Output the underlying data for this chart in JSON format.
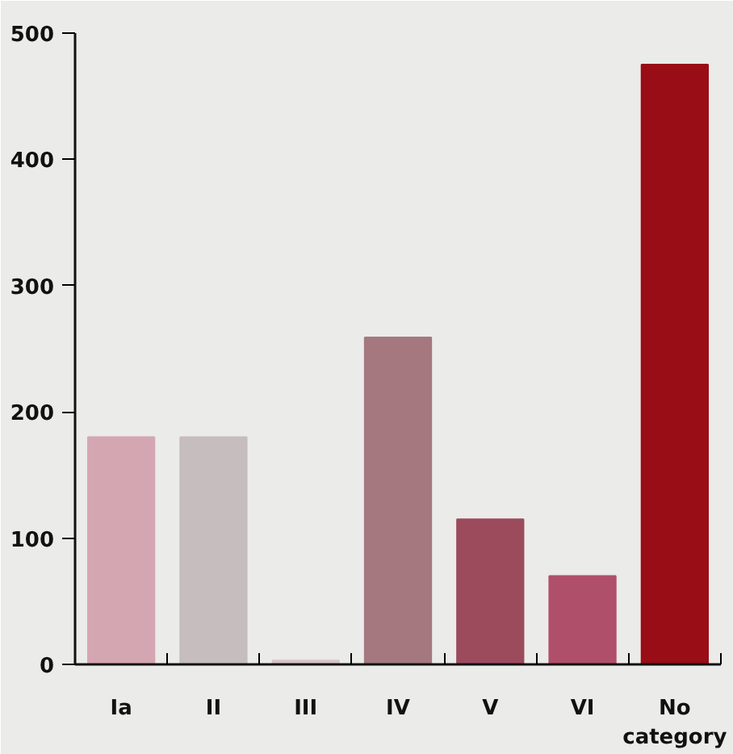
{
  "chart_data": {
    "type": "bar",
    "categories": [
      "Ia",
      "II",
      "III",
      "IV",
      "V",
      "VI",
      "No category"
    ],
    "values": [
      180,
      180,
      3,
      259,
      115,
      70,
      475
    ],
    "colors": [
      "#d4a6b1",
      "#c5bdbe",
      "#d6c3c6",
      "#a57880",
      "#9c4b5d",
      "#b04f69",
      "#990d16"
    ],
    "ylim": [
      0,
      500
    ],
    "yticks": [
      0,
      100,
      200,
      300,
      400,
      500
    ],
    "grid": false
  }
}
